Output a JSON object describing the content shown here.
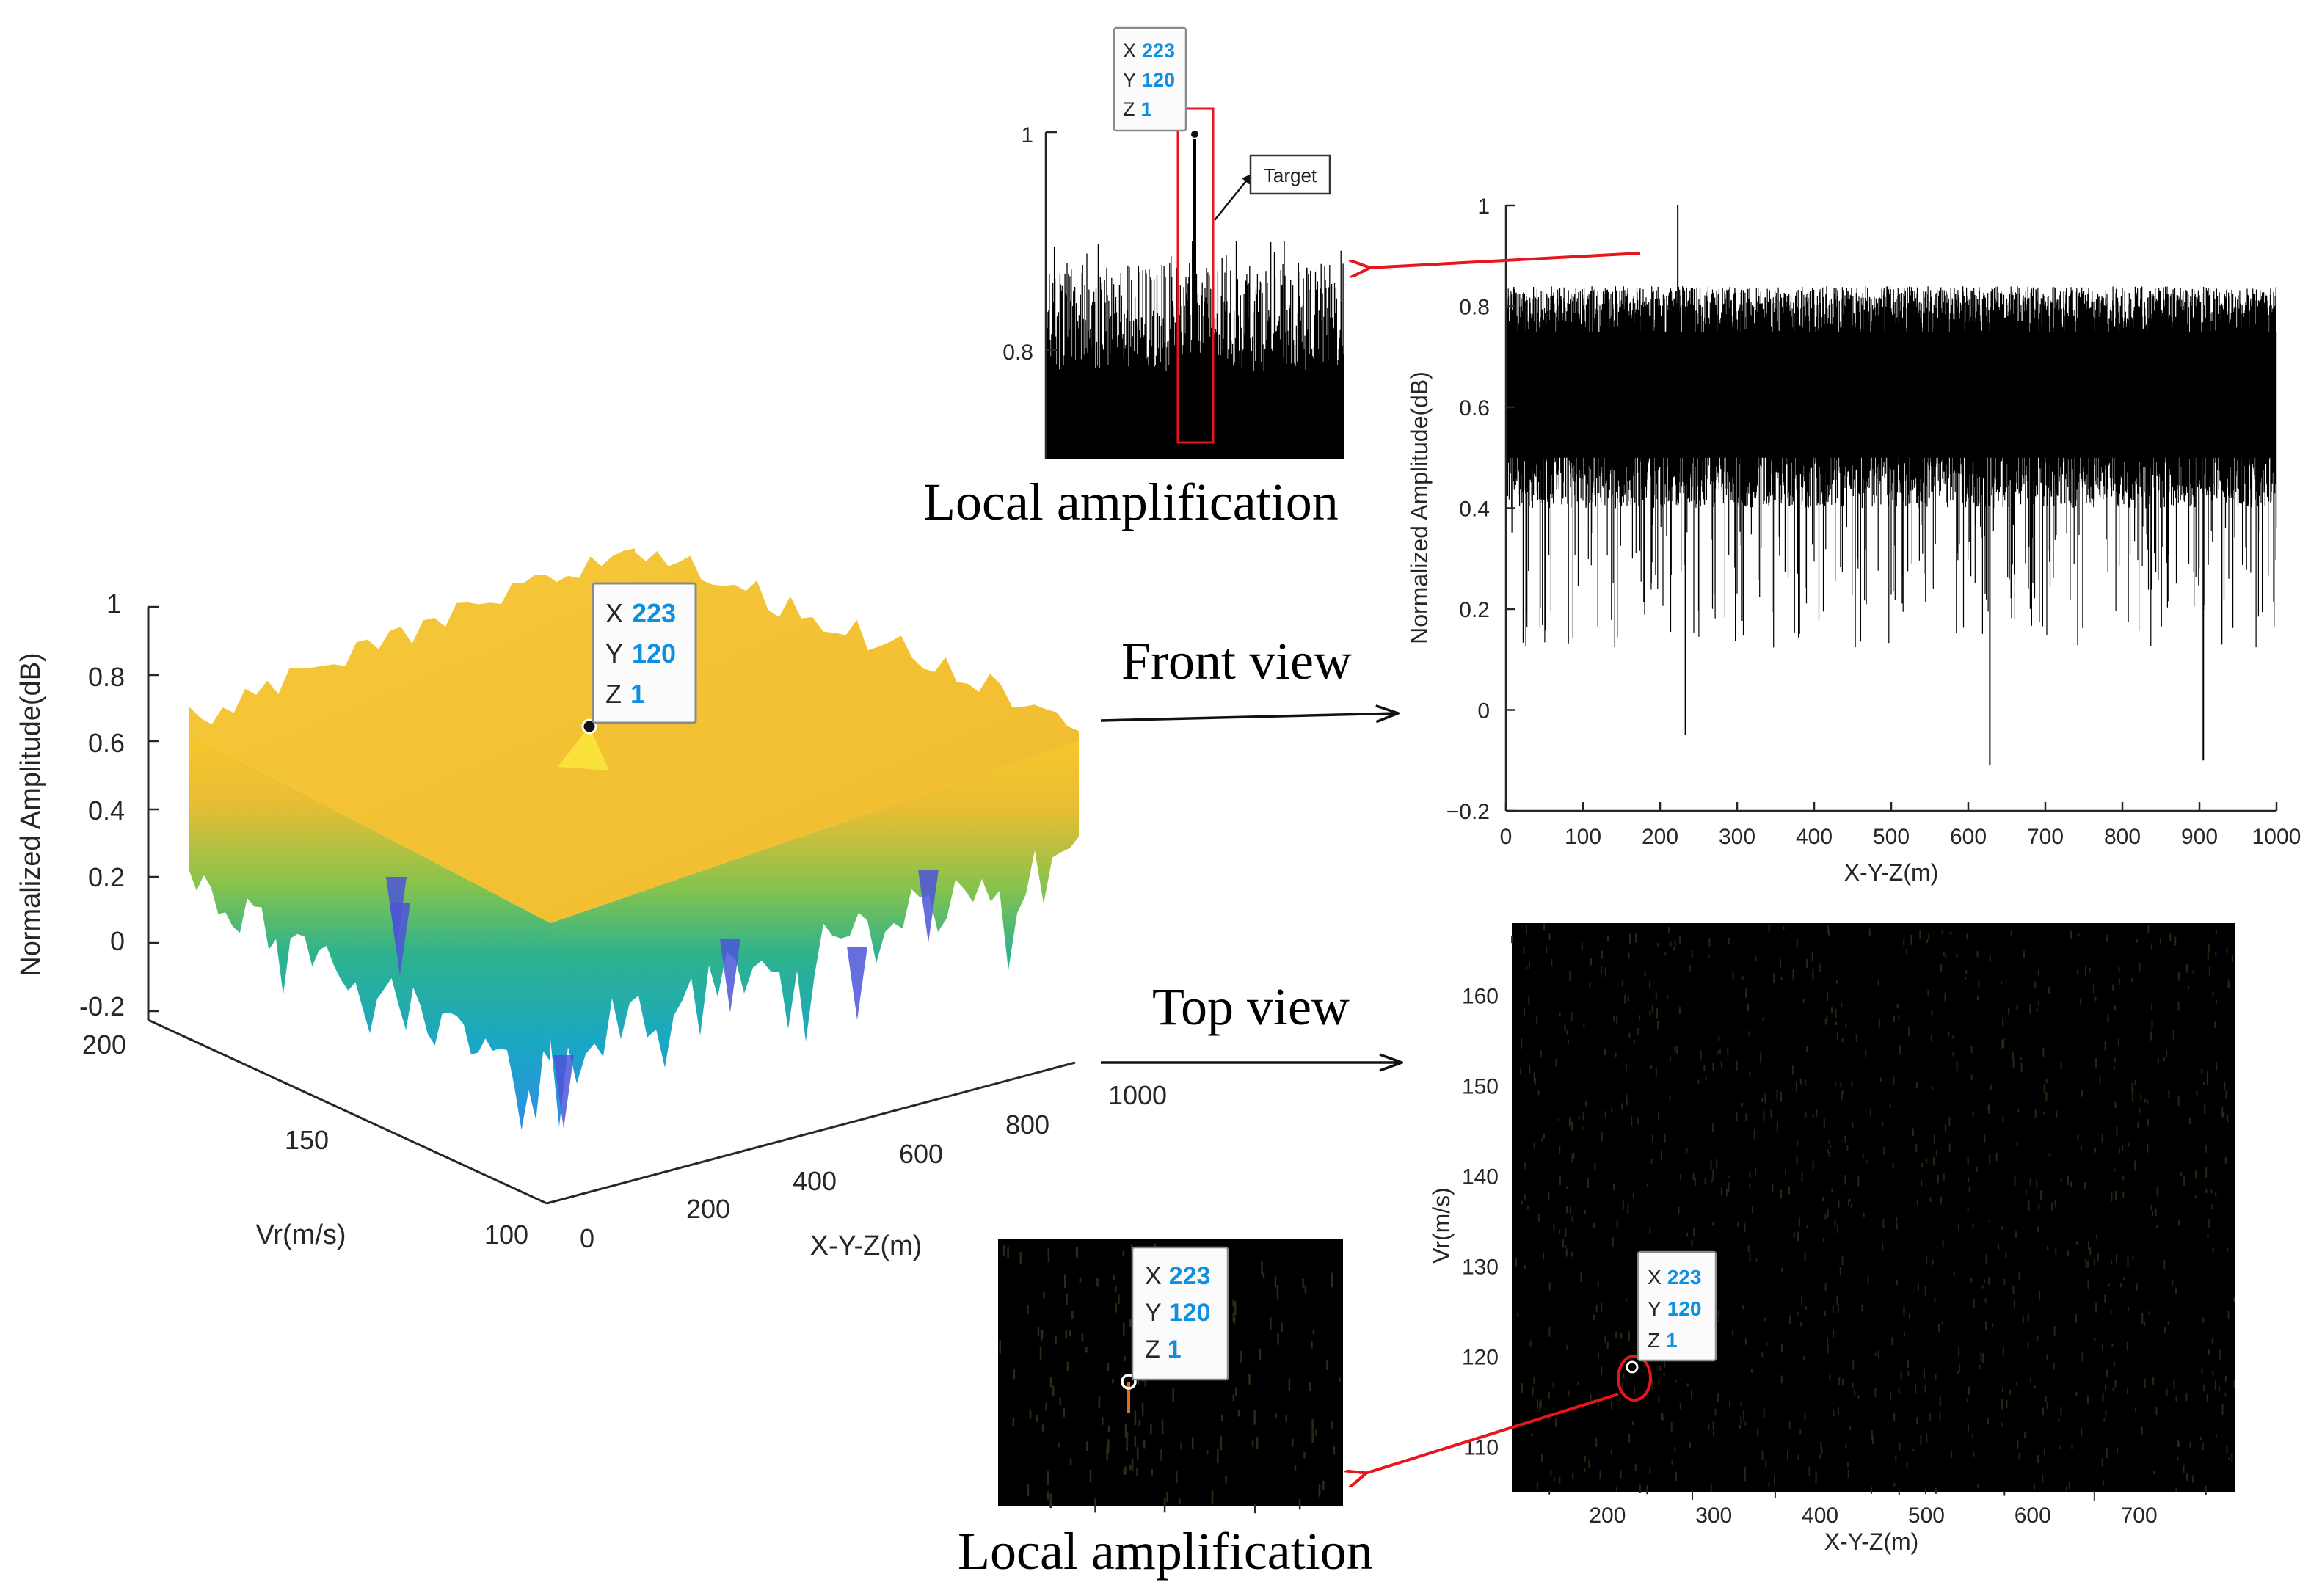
{
  "chart_data": [
    {
      "id": "surface3d",
      "type": "surface",
      "xlabel": "X-Y-Z(m)",
      "ylabel": "Vr(m/s)",
      "zlabel": "Normalized Amplitude(dB)",
      "x_ticks": [
        "0",
        "200",
        "400",
        "600",
        "800",
        "1000"
      ],
      "y_ticks": [
        "100",
        "150",
        "200"
      ],
      "z_ticks": [
        "-0.2",
        "0",
        "0.2",
        "0.4",
        "0.6",
        "0.8",
        "1"
      ],
      "xlim": [
        0,
        1000
      ],
      "ylim": [
        100,
        200
      ],
      "zlim": [
        -0.2,
        1
      ],
      "colormap": "parula",
      "datatip": {
        "x": 223,
        "y": 120,
        "z": 1
      }
    },
    {
      "id": "front",
      "type": "line",
      "xlabel": "X-Y-Z(m)",
      "ylabel": "Normalized Amplitude(dB)",
      "xlim": [
        0,
        1000
      ],
      "ylim": [
        -0.2,
        1
      ],
      "x_ticks": [
        0,
        100,
        200,
        300,
        400,
        500,
        600,
        700,
        800,
        900,
        1000
      ],
      "y_ticks": [
        -0.2,
        0,
        0.2,
        0.4,
        0.6,
        0.8,
        1
      ],
      "description_band": {
        "typical_range": [
          0.35,
          0.85
        ]
      },
      "peak": {
        "x": 223,
        "y": 1
      },
      "deep_dips": [
        {
          "x": 233,
          "y": -0.05
        },
        {
          "x": 628,
          "y": -0.11
        },
        {
          "x": 905,
          "y": -0.1
        }
      ]
    },
    {
      "id": "front_zoom",
      "type": "line",
      "ylim": [
        0.7,
        1
      ],
      "y_ticks": [
        "0.8",
        "1"
      ],
      "datatip": {
        "x": 223,
        "y": 120,
        "z": 1
      },
      "annotation": "Target"
    },
    {
      "id": "top",
      "type": "heatmap",
      "xlabel": "X-Y-Z(m)",
      "ylabel": "Vr(m/s)",
      "xlim": [
        110,
        790
      ],
      "ylim": [
        105,
        168
      ],
      "x_ticks": [
        200,
        300,
        400,
        500,
        600,
        700
      ],
      "y_ticks": [
        110,
        120,
        130,
        140,
        150,
        160
      ],
      "datatip": {
        "x": 223,
        "y": 120,
        "z": 1
      }
    },
    {
      "id": "top_zoom",
      "type": "heatmap",
      "datatip": {
        "x": 223,
        "y": 120,
        "z": 1
      }
    }
  ],
  "labels": {
    "front_view": "Front view",
    "top_view": "Top view",
    "local_amp_top": "Local amplification",
    "local_amp_bottom": "Local amplification"
  },
  "datatip_keys": {
    "x": "X",
    "y": "Y",
    "z": "Z"
  },
  "colors": {
    "arrow_red": "#e8141e",
    "datatip_blue": "#0f8fe0"
  }
}
